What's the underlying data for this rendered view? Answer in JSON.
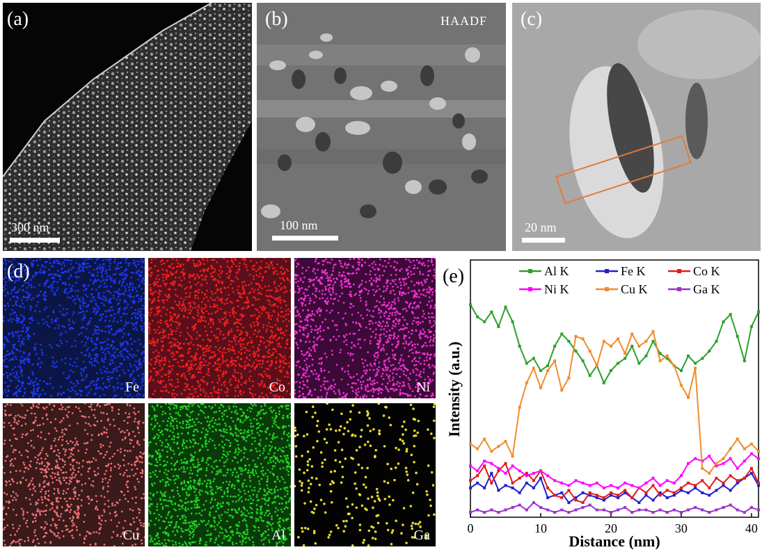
{
  "panels": {
    "a": {
      "label": "(a)",
      "scale": "300 nm"
    },
    "b": {
      "label": "(b)",
      "scale": "100 nm",
      "tag": "HAADF"
    },
    "c": {
      "label": "(c)",
      "scale": "20 nm"
    },
    "d": {
      "label": "(d)"
    },
    "e": {
      "label": "(e)"
    }
  },
  "maps": [
    {
      "element": "Fe",
      "color": "#1f3bff"
    },
    {
      "element": "Co",
      "color": "#ff2020"
    },
    {
      "element": "Ni",
      "color": "#ff33dd"
    },
    {
      "element": "Cu",
      "color": "#ff7a7a"
    },
    {
      "element": "Al",
      "color": "#22dd22"
    },
    {
      "element": "Ga",
      "color": "#ffee33"
    }
  ],
  "chart_data": {
    "type": "line",
    "xlabel": "Distance (nm)",
    "ylabel": "Intensity (a.u.)",
    "xlim": [
      0,
      41
    ],
    "xticks": [
      0,
      10,
      20,
      30,
      40
    ],
    "ylim": [
      0,
      100
    ],
    "legend_position": "top",
    "series": [
      {
        "name": "Al K",
        "color": "#2ca02c",
        "x": [
          0,
          1,
          2,
          3,
          4,
          5,
          6,
          7,
          8,
          9,
          10,
          11,
          12,
          13,
          14,
          15,
          16,
          17,
          18,
          19,
          20,
          21,
          22,
          23,
          24,
          25,
          26,
          27,
          28,
          29,
          30,
          31,
          32,
          33,
          34,
          35,
          36,
          37,
          38,
          39,
          40,
          41
        ],
        "values": [
          87,
          82,
          80,
          84,
          78,
          86,
          80,
          70,
          63,
          65,
          60,
          62,
          70,
          75,
          72,
          68,
          64,
          58,
          62,
          55,
          60,
          63,
          65,
          70,
          63,
          66,
          72,
          67,
          65,
          62,
          60,
          66,
          63,
          65,
          68,
          72,
          80,
          83,
          74,
          64,
          78,
          84
        ]
      },
      {
        "name": "Fe K",
        "color": "#1f1fd0",
        "x": [
          0,
          1,
          2,
          3,
          4,
          5,
          6,
          7,
          8,
          9,
          10,
          11,
          12,
          13,
          14,
          15,
          16,
          17,
          18,
          19,
          20,
          21,
          22,
          23,
          24,
          25,
          26,
          27,
          28,
          29,
          30,
          31,
          32,
          33,
          34,
          35,
          36,
          37,
          38,
          39,
          40,
          41
        ],
        "values": [
          12,
          14,
          12,
          18,
          11,
          13,
          12,
          10,
          14,
          12,
          16,
          8,
          9,
          10,
          6,
          8,
          10,
          9,
          8,
          7,
          9,
          8,
          10,
          8,
          6,
          9,
          7,
          10,
          8,
          9,
          11,
          10,
          12,
          10,
          9,
          11,
          13,
          11,
          14,
          16,
          18,
          13
        ]
      },
      {
        "name": "Co K",
        "color": "#e31a1c",
        "x": [
          0,
          1,
          2,
          3,
          4,
          5,
          6,
          7,
          8,
          9,
          10,
          11,
          12,
          13,
          14,
          15,
          16,
          17,
          18,
          19,
          20,
          21,
          22,
          23,
          24,
          25,
          26,
          27,
          28,
          29,
          30,
          31,
          32,
          33,
          34,
          35,
          36,
          37,
          38,
          39,
          40,
          41
        ],
        "values": [
          15,
          17,
          21,
          14,
          19,
          22,
          14,
          16,
          18,
          15,
          19,
          12,
          9,
          8,
          11,
          7,
          6,
          10,
          9,
          8,
          10,
          9,
          11,
          8,
          12,
          10,
          13,
          9,
          11,
          10,
          12,
          14,
          13,
          15,
          12,
          16,
          14,
          17,
          15,
          16,
          20,
          14
        ]
      },
      {
        "name": "Ni K",
        "color": "#ff00ff",
        "x": [
          0,
          1,
          2,
          3,
          4,
          5,
          6,
          7,
          8,
          9,
          10,
          11,
          12,
          13,
          14,
          15,
          16,
          17,
          18,
          19,
          20,
          21,
          22,
          23,
          24,
          25,
          26,
          27,
          28,
          29,
          30,
          31,
          32,
          33,
          34,
          35,
          36,
          37,
          38,
          39,
          40,
          41
        ],
        "values": [
          21,
          19,
          23,
          22,
          20,
          18,
          21,
          19,
          17,
          18,
          19,
          17,
          15,
          14,
          13,
          15,
          14,
          13,
          14,
          12,
          13,
          12,
          14,
          13,
          12,
          14,
          16,
          13,
          15,
          14,
          17,
          22,
          24,
          23,
          25,
          21,
          22,
          24,
          20,
          23,
          26,
          24
        ]
      },
      {
        "name": "Cu K",
        "color": "#f08c2c",
        "x": [
          0,
          1,
          2,
          3,
          4,
          5,
          6,
          7,
          8,
          9,
          10,
          11,
          12,
          13,
          14,
          15,
          16,
          17,
          18,
          19,
          20,
          21,
          22,
          23,
          24,
          25,
          26,
          27,
          28,
          29,
          30,
          31,
          32,
          33,
          34,
          35,
          36,
          37,
          38,
          39,
          40,
          41
        ],
        "values": [
          30,
          28,
          32,
          27,
          29,
          31,
          25,
          45,
          55,
          61,
          53,
          60,
          64,
          52,
          57,
          74,
          73,
          68,
          62,
          72,
          70,
          73,
          67,
          75,
          70,
          72,
          76,
          64,
          66,
          62,
          54,
          49,
          61,
          20,
          18,
          22,
          24,
          28,
          32,
          28,
          30,
          27
        ]
      },
      {
        "name": "Ga K",
        "color": "#9933cc",
        "x": [
          0,
          1,
          2,
          3,
          4,
          5,
          6,
          7,
          8,
          9,
          10,
          11,
          12,
          13,
          14,
          15,
          16,
          17,
          18,
          19,
          20,
          21,
          22,
          23,
          24,
          25,
          26,
          27,
          28,
          29,
          30,
          31,
          32,
          33,
          34,
          35,
          36,
          37,
          38,
          39,
          40,
          41
        ],
        "values": [
          2,
          3,
          2,
          3,
          2,
          3,
          4,
          5,
          3,
          6,
          4,
          3,
          2,
          3,
          2,
          3,
          4,
          5,
          3,
          3,
          2,
          3,
          4,
          2,
          3,
          3,
          2,
          3,
          2,
          3,
          2,
          3,
          4,
          3,
          2,
          3,
          4,
          5,
          3,
          2,
          4,
          3
        ]
      }
    ]
  }
}
